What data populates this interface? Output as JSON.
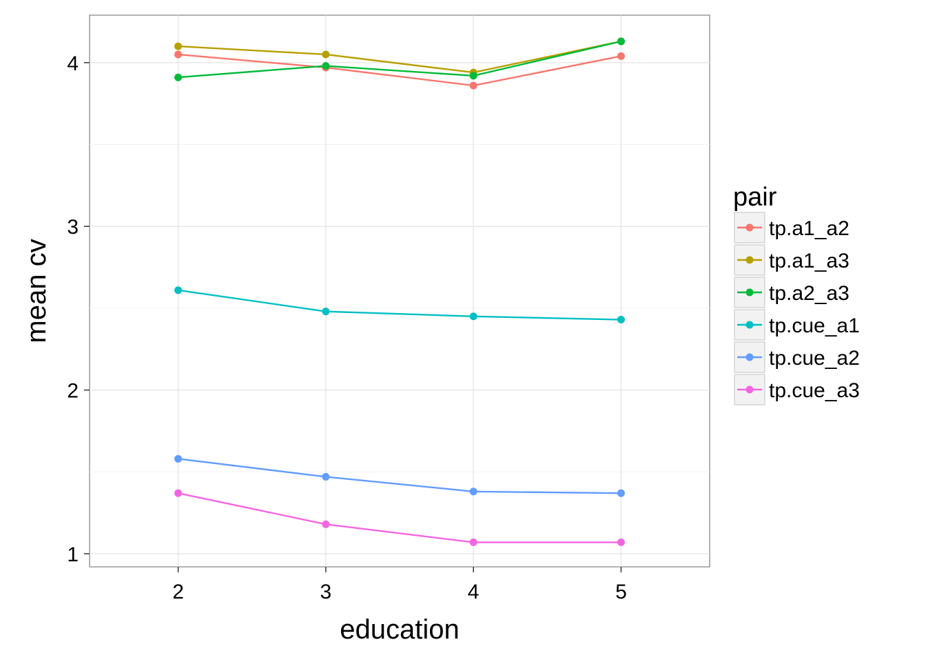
{
  "chart_data": {
    "type": "line",
    "xlabel": "education",
    "ylabel": "mean cv",
    "x": [
      2,
      3,
      4,
      5
    ],
    "xlim": [
      1.4,
      5.6
    ],
    "ylim": [
      0.92,
      4.29
    ],
    "xticks": [
      2,
      3,
      4,
      5
    ],
    "yticks": [
      1,
      2,
      3,
      4
    ],
    "grid": true,
    "legend": {
      "title": "pair",
      "position": "right"
    },
    "series": [
      {
        "name": "tp.a1_a2",
        "color": "#F8766D",
        "values": [
          4.05,
          3.97,
          3.86,
          4.04
        ]
      },
      {
        "name": "tp.a1_a3",
        "color": "#B79F00",
        "values": [
          4.1,
          4.05,
          3.94,
          4.13
        ]
      },
      {
        "name": "tp.a2_a3",
        "color": "#00BA38",
        "values": [
          3.91,
          3.98,
          3.92,
          4.13
        ]
      },
      {
        "name": "tp.cue_a1",
        "color": "#00BFC4",
        "values": [
          2.61,
          2.48,
          2.45,
          2.43
        ]
      },
      {
        "name": "tp.cue_a2",
        "color": "#619CFF",
        "values": [
          1.58,
          1.47,
          1.38,
          1.37
        ]
      },
      {
        "name": "tp.cue_a3",
        "color": "#F564E3",
        "values": [
          1.37,
          1.18,
          1.07,
          1.07
        ]
      }
    ]
  }
}
